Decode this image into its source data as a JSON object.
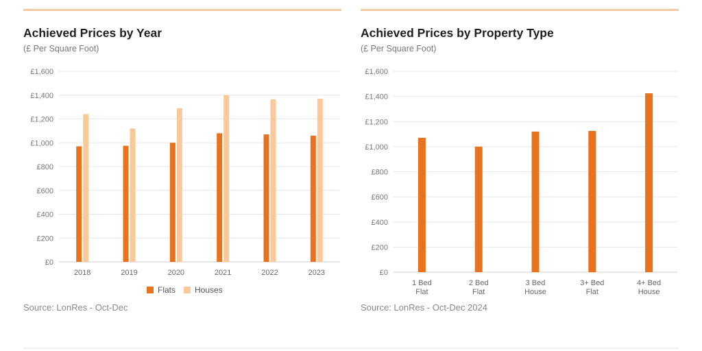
{
  "colors": {
    "flats": "#e8731f",
    "houses": "#f9c99a",
    "accent_rule": "#f2c9a0",
    "grid": "#e6e6e6"
  },
  "left": {
    "title": "Achieved Prices by Year",
    "subtitle": "(£ Per Square Foot)",
    "source": "Source: LonRes - Oct-Dec"
  },
  "right": {
    "title": "Achieved Prices by Property Type",
    "subtitle": "(£ Per Square Foot)",
    "source": "Source: LonRes - Oct-Dec 2024"
  },
  "chart_data": [
    {
      "type": "bar",
      "title": "Achieved Prices by Year",
      "subtitle": "(£ Per Square Foot)",
      "categories": [
        "2018",
        "2019",
        "2020",
        "2021",
        "2022",
        "2023"
      ],
      "series": [
        {
          "name": "Flats",
          "color": "#e8731f",
          "values": [
            970,
            975,
            1000,
            1080,
            1070,
            1060
          ]
        },
        {
          "name": "Houses",
          "color": "#f9c99a",
          "values": [
            1240,
            1120,
            1290,
            1400,
            1365,
            1370
          ]
        }
      ],
      "yticks": [
        "£0",
        "£200",
        "£400",
        "£600",
        "£800",
        "£1,000",
        "£1,200",
        "£1,400",
        "£1,600"
      ],
      "ylim": [
        0,
        1600
      ],
      "grid": true,
      "legend": "bottom-center"
    },
    {
      "type": "bar",
      "title": "Achieved Prices by Property Type",
      "subtitle": "(£ Per Square Foot)",
      "categories": [
        [
          "1 Bed",
          "Flat"
        ],
        [
          "2 Bed",
          "Flat"
        ],
        [
          "3 Bed",
          "House"
        ],
        [
          "3+ Bed",
          "Flat"
        ],
        [
          "4+ Bed",
          "House"
        ]
      ],
      "series": [
        {
          "color": "#e8731f",
          "values": [
            1070,
            1000,
            1120,
            1125,
            1425
          ]
        }
      ],
      "yticks": [
        "£0",
        "£200",
        "£400",
        "£600",
        "£800",
        "£1,000",
        "£1,200",
        "£1,400",
        "£1,600"
      ],
      "ylim": [
        0,
        1600
      ],
      "grid": true,
      "legend": "none"
    }
  ]
}
